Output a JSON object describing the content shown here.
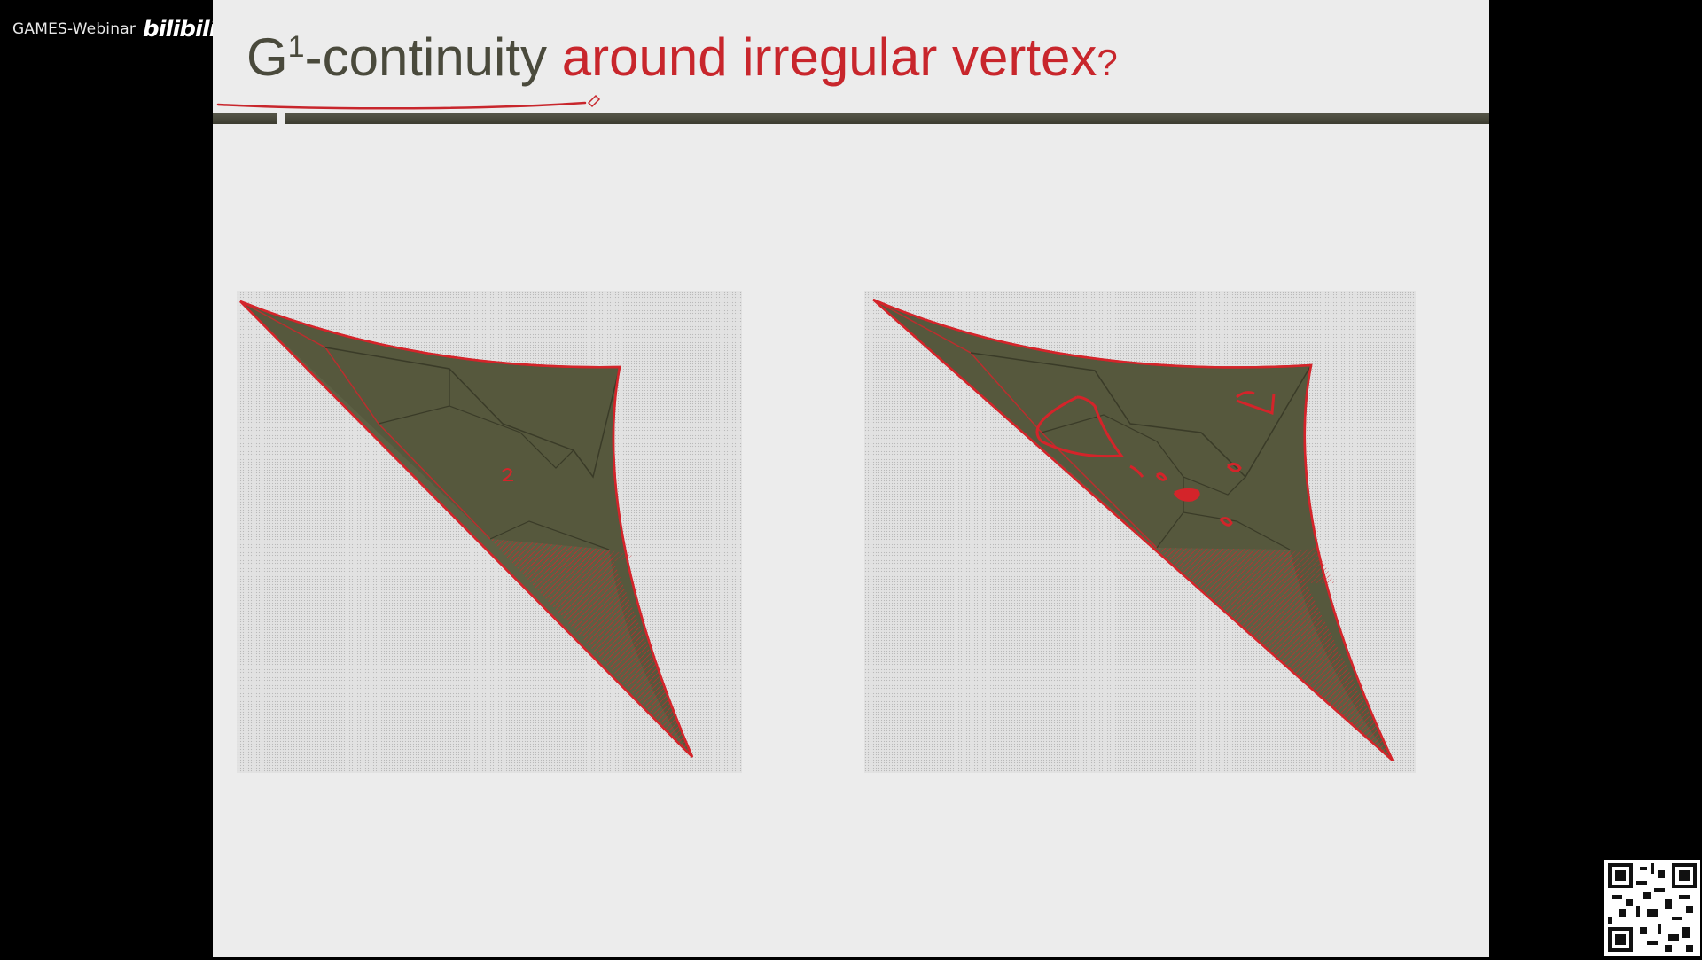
{
  "watermark": {
    "text": "GAMES-Webinar",
    "logo": "bilibili"
  },
  "slide": {
    "title": {
      "part1": "G",
      "superscript": "1",
      "part2": "-continuity ",
      "part3": "around irregular vertex",
      "question": "?"
    }
  },
  "figures": [
    {
      "name": "surface-left",
      "annotation": "2"
    },
    {
      "name": "surface-right"
    }
  ],
  "colors": {
    "surface": "#56583d",
    "edge": "#d4242a",
    "panel_bg": "#e2e2e2",
    "title_red": "#c8262c",
    "title_dark": "#4a4a3c"
  },
  "qr": {
    "name": "qr-code-icon"
  }
}
